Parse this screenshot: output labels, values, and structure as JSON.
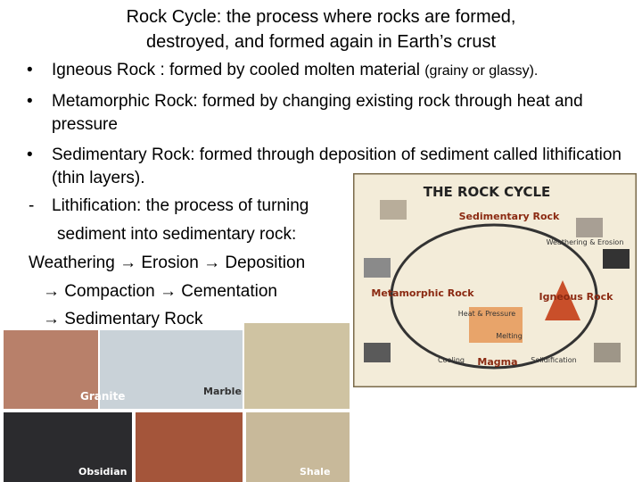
{
  "slide": {
    "title_lines": [
      "Rock Cycle: the process where rocks are formed,",
      "destroyed, and formed again in Earth’s crust"
    ],
    "bullets": [
      {
        "text": "Igneous Rock : formed by cooled molten material ",
        "note": "(grainy or glassy)."
      },
      {
        "text": "Metamorphic Rock: formed by changing existing rock through heat and pressure"
      },
      {
        "text": "Sedimentary Rock: formed through deposition of sediment called lithification (thin layers)."
      }
    ],
    "lithification_lines": [
      "Lithification: the process of turning",
      "sediment into sedimentary rock:",
      "Weathering → Erosion → Deposition",
      "→ Compaction → Cementation",
      "→ Sedimentary Rock"
    ]
  },
  "diagram": {
    "title": "THE ROCK CYCLE",
    "sedimentary": "Sedimentary Rock",
    "metamorphic": "Metamorphic Rock",
    "igneous": "Igneous Rock",
    "magma": "Magma",
    "weathering": "Weathering & Erosion",
    "melting": "Melting",
    "cooling": "Cooling",
    "solidification": "Solidification",
    "heat_pressure": "Heat & Pressure"
  },
  "photos": {
    "granite": "Granite",
    "marble": "Marble",
    "obsidian": "Obsidian",
    "shale": "Shale"
  }
}
